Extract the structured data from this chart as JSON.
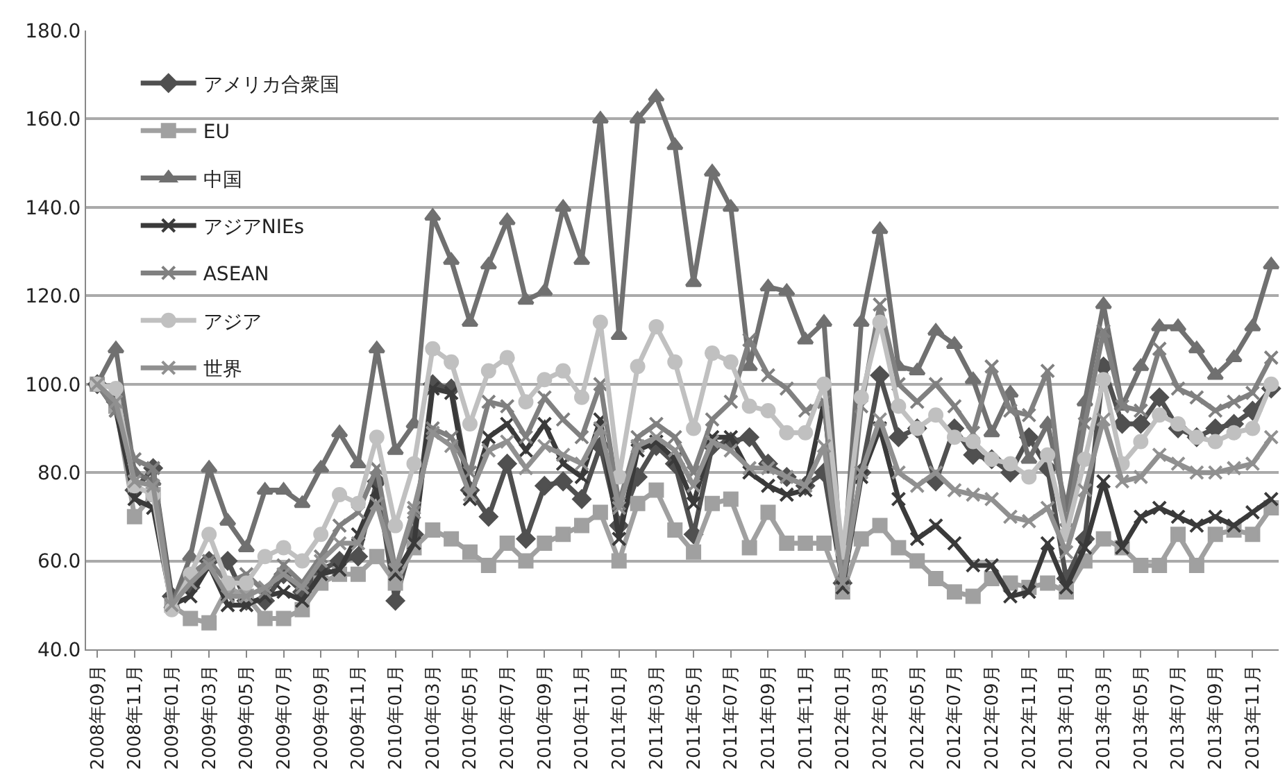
{
  "chart_data": {
    "type": "line",
    "categories": [
      "2008年09月",
      null,
      "2008年11月",
      null,
      "2009年01月",
      null,
      "2009年03月",
      null,
      "2009年05月",
      null,
      "2009年07月",
      null,
      "2009年09月",
      null,
      "2009年11月",
      null,
      "2010年01月",
      null,
      "2010年03月",
      null,
      "2010年05月",
      null,
      "2010年07月",
      null,
      "2010年09月",
      null,
      "2010年11月",
      null,
      "2011年01月",
      null,
      "2011年03月",
      null,
      "2011年05月",
      null,
      "2011年07月",
      null,
      "2011年09月",
      null,
      "2011年11月",
      null,
      "2012年01月",
      null,
      "2012年03月",
      null,
      "2012年05月",
      null,
      "2012年07月",
      null,
      "2012年09月",
      null,
      "2012年11月",
      null,
      "2013年01月",
      null,
      "2013年03月",
      null,
      "2013年05月",
      null,
      "2013年07月",
      null,
      "2013年09月",
      null,
      "2013年11月",
      null
    ],
    "series": [
      {
        "name": "アメリカ合衆国",
        "color": "#505050",
        "marker": "diamond",
        "values": [
          100,
          96,
          76,
          81,
          52,
          54,
          60,
          60,
          51,
          51,
          57,
          53,
          58,
          60,
          61,
          78,
          51,
          66,
          100,
          99,
          76,
          70,
          82,
          65,
          77,
          78,
          74,
          86,
          68,
          79,
          86,
          82,
          66,
          86,
          87,
          88,
          82,
          79,
          77,
          80,
          55,
          80,
          102,
          88,
          90,
          78,
          90,
          84,
          83,
          80,
          88,
          81,
          56,
          65,
          104,
          91,
          91,
          97,
          90,
          88,
          90,
          91,
          94,
          99
        ]
      },
      {
        "name": "EU",
        "color": "#a0a0a0",
        "marker": "square",
        "values": [
          100,
          95,
          70,
          75,
          50,
          47,
          46,
          54,
          52,
          47,
          47,
          49,
          55,
          57,
          57,
          61,
          55,
          63,
          67,
          65,
          62,
          59,
          64,
          60,
          64,
          66,
          68,
          71,
          60,
          73,
          76,
          67,
          62,
          73,
          74,
          63,
          71,
          64,
          64,
          64,
          53,
          65,
          68,
          63,
          60,
          56,
          53,
          52,
          56,
          55,
          54,
          55,
          53,
          60,
          65,
          63,
          59,
          59,
          66,
          59,
          66,
          67,
          66,
          72
        ]
      },
      {
        "name": "中国",
        "color": "#707070",
        "marker": "triangle",
        "values": [
          100,
          108,
          80,
          78,
          50,
          61,
          81,
          69,
          63,
          76,
          76,
          73,
          81,
          89,
          82,
          108,
          85,
          91,
          138,
          128,
          114,
          127,
          137,
          119,
          121,
          140,
          128,
          160,
          111,
          160,
          165,
          154,
          123,
          148,
          140,
          104,
          122,
          121,
          110,
          114,
          56,
          114,
          135,
          104,
          103,
          112,
          109,
          101,
          89,
          98,
          83,
          91,
          72,
          96,
          118,
          95,
          104,
          113,
          113,
          108,
          102,
          106,
          113,
          127
        ]
      },
      {
        "name": "アジアNIEs",
        "color": "#3a3a3a",
        "marker": "cross",
        "values": [
          100,
          94,
          74,
          72,
          50,
          52,
          59,
          50,
          50,
          52,
          53,
          51,
          57,
          58,
          66,
          76,
          57,
          64,
          99,
          98,
          74,
          88,
          91,
          85,
          91,
          82,
          79,
          92,
          65,
          85,
          87,
          83,
          73,
          88,
          88,
          80,
          77,
          75,
          76,
          96,
          54,
          79,
          90,
          74,
          65,
          68,
          64,
          59,
          59,
          52,
          53,
          64,
          54,
          63,
          78,
          63,
          70,
          72,
          70,
          68,
          70,
          68,
          71,
          74
        ]
      },
      {
        "name": "ASEAN",
        "color": "#808080",
        "marker": "cross",
        "values": [
          100,
          94,
          83,
          81,
          50,
          57,
          60,
          55,
          57,
          53,
          59,
          55,
          61,
          68,
          71,
          81,
          58,
          71,
          90,
          88,
          80,
          96,
          95,
          88,
          97,
          92,
          88,
          100,
          73,
          88,
          91,
          88,
          80,
          92,
          96,
          110,
          102,
          99,
          94,
          96,
          55,
          95,
          118,
          100,
          96,
          100,
          95,
          89,
          104,
          94,
          93,
          103,
          67,
          91,
          112,
          95,
          94,
          108,
          99,
          97,
          94,
          96,
          98,
          106
        ]
      },
      {
        "name": "アジア",
        "color": "#c0c0c0",
        "marker": "circle",
        "values": [
          100,
          99,
          77,
          75,
          49,
          57,
          66,
          55,
          55,
          61,
          63,
          60,
          66,
          75,
          73,
          88,
          68,
          82,
          108,
          105,
          91,
          103,
          106,
          96,
          101,
          103,
          97,
          114,
          79,
          104,
          113,
          105,
          90,
          107,
          105,
          95,
          94,
          89,
          89,
          100,
          62,
          97,
          114,
          95,
          90,
          93,
          88,
          87,
          83,
          82,
          79,
          84,
          66,
          83,
          101,
          82,
          87,
          93,
          91,
          88,
          87,
          89,
          90,
          100
        ]
      },
      {
        "name": "世界",
        "color": "#909090",
        "marker": "cross",
        "values": [
          100,
          96,
          78,
          77,
          50,
          55,
          59,
          52,
          52,
          54,
          57,
          54,
          60,
          64,
          64,
          73,
          58,
          72,
          89,
          86,
          75,
          85,
          87,
          81,
          86,
          84,
          82,
          90,
          72,
          86,
          88,
          85,
          77,
          87,
          85,
          81,
          81,
          79,
          77,
          86,
          55,
          80,
          92,
          80,
          77,
          80,
          76,
          75,
          74,
          70,
          69,
          72,
          62,
          76,
          92,
          78,
          79,
          84,
          82,
          80,
          80,
          81,
          82,
          88
        ]
      }
    ],
    "ylim": [
      40,
      180
    ],
    "yticks": [
      {
        "value": 40,
        "label": "40.0"
      },
      {
        "value": 60,
        "label": "60.0"
      },
      {
        "value": 80,
        "label": "80.0"
      },
      {
        "value": 100,
        "label": "100.0"
      },
      {
        "value": 120,
        "label": "120.0"
      },
      {
        "value": 140,
        "label": "140.0"
      },
      {
        "value": 160,
        "label": "160.0"
      },
      {
        "value": 180,
        "label": "180.0"
      }
    ],
    "grid": "y",
    "legend": "top left",
    "line_style": "solid"
  }
}
